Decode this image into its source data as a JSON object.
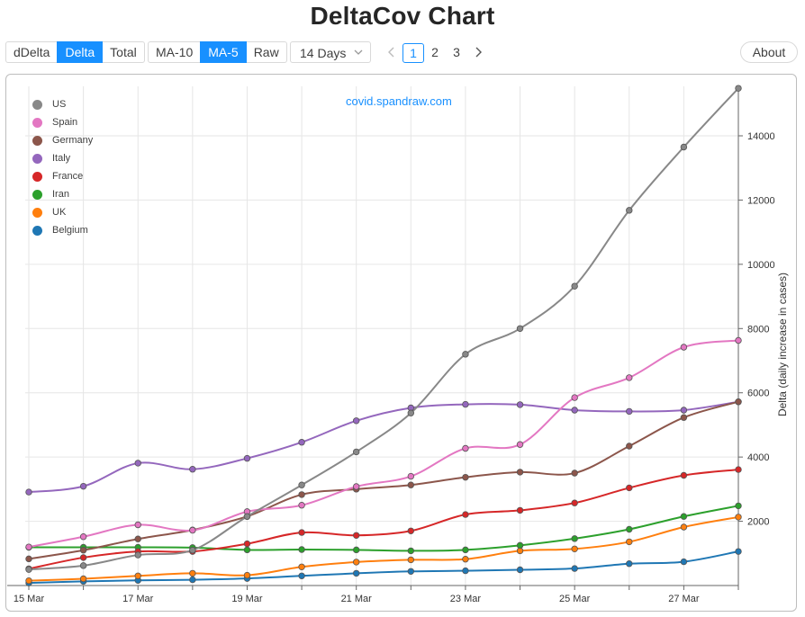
{
  "page": {
    "title": "DeltaCov Chart",
    "watermark": "covid.spandraw.com"
  },
  "toolbar": {
    "mode_buttons": [
      {
        "label": "dDelta",
        "active": false
      },
      {
        "label": "Delta",
        "active": true
      },
      {
        "label": "Total",
        "active": false
      }
    ],
    "avg_buttons": [
      {
        "label": "MA-10",
        "active": false
      },
      {
        "label": "MA-5",
        "active": true
      },
      {
        "label": "Raw",
        "active": false
      }
    ],
    "days_select": "14 Days",
    "pages": [
      "1",
      "2",
      "3"
    ],
    "current_page": "1",
    "about_label": "About",
    "accent_color": "#1890ff"
  },
  "chart_data": {
    "type": "line",
    "ylabel": "Delta (daily increase in cases)",
    "ylim": [
      0,
      15400
    ],
    "yticks": [
      2000,
      4000,
      6000,
      8000,
      10000,
      12000,
      14000
    ],
    "x": [
      "15 Mar",
      "16 Mar",
      "17 Mar",
      "18 Mar",
      "19 Mar",
      "20 Mar",
      "21 Mar",
      "22 Mar",
      "23 Mar",
      "24 Mar",
      "25 Mar",
      "26 Mar",
      "27 Mar",
      "28 Mar"
    ],
    "xtick_labels": [
      "15 Mar",
      "",
      "17 Mar",
      "",
      "19 Mar",
      "",
      "21 Mar",
      "",
      "23 Mar",
      "",
      "25 Mar",
      "",
      "27 Mar",
      ""
    ],
    "grid": true,
    "legend_position": "top-left",
    "series": [
      {
        "name": "US",
        "color": "#888888",
        "values": [
          500,
          620,
          950,
          1100,
          2150,
          3130,
          4160,
          5370,
          7200,
          8000,
          9320,
          11680,
          13650,
          15480
        ]
      },
      {
        "name": "Spain",
        "color": "#e377c2",
        "values": [
          1200,
          1520,
          1890,
          1720,
          2300,
          2500,
          3080,
          3400,
          4270,
          4390,
          5850,
          6470,
          7420,
          7630
        ]
      },
      {
        "name": "Germany",
        "color": "#8c564b",
        "values": [
          830,
          1100,
          1450,
          1730,
          2150,
          2830,
          3000,
          3130,
          3370,
          3530,
          3500,
          4340,
          5230,
          5720
        ]
      },
      {
        "name": "Italy",
        "color": "#9467bd",
        "values": [
          2910,
          3090,
          3810,
          3620,
          3960,
          4460,
          5130,
          5530,
          5640,
          5630,
          5460,
          5420,
          5460,
          5720
        ]
      },
      {
        "name": "France",
        "color": "#d62728",
        "values": [
          520,
          870,
          1060,
          1060,
          1300,
          1650,
          1560,
          1700,
          2210,
          2340,
          2570,
          3040,
          3430,
          3610
        ]
      },
      {
        "name": "Iran",
        "color": "#2ca02c",
        "values": [
          1190,
          1190,
          1190,
          1180,
          1110,
          1120,
          1110,
          1080,
          1110,
          1250,
          1460,
          1750,
          2150,
          2480
        ]
      },
      {
        "name": "UK",
        "color": "#ff7f0e",
        "values": [
          150,
          210,
          300,
          380,
          320,
          580,
          730,
          800,
          820,
          1080,
          1140,
          1360,
          1820,
          2130
        ]
      },
      {
        "name": "Belgium",
        "color": "#1f77b4",
        "values": [
          80,
          130,
          160,
          180,
          220,
          300,
          380,
          440,
          460,
          490,
          530,
          680,
          740,
          1060
        ]
      }
    ]
  }
}
